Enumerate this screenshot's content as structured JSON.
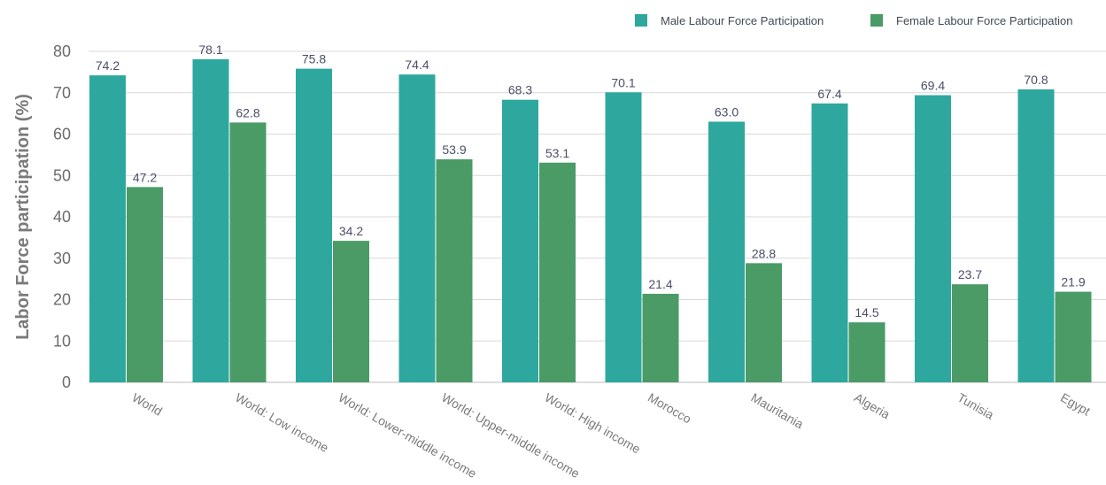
{
  "chart_data": {
    "type": "bar",
    "title": "",
    "xlabel": "",
    "ylabel": "Labor Force participation (%)",
    "ylim": [
      0,
      80
    ],
    "yticks": [
      0,
      10,
      20,
      30,
      40,
      50,
      60,
      70,
      80
    ],
    "grid": true,
    "legend_position": "top-right",
    "categories": [
      "World",
      "World: Low income",
      "World: Lower-middle income",
      "World: Upper-middle income",
      "World: High income",
      "Morocco",
      "Mauritania",
      "Algeria",
      "Tunisia",
      "Egypt"
    ],
    "series": [
      {
        "name": "Male Labour Force Participation",
        "color": "#2ea89e",
        "values": [
          74.2,
          78.1,
          75.8,
          74.4,
          68.3,
          70.1,
          63.0,
          67.4,
          69.4,
          70.8
        ],
        "labels": [
          "74.2",
          "78.1",
          "75.8",
          "74.4",
          "68.3",
          "70.1",
          "63.0",
          "67.4",
          "69.4",
          "70.8"
        ]
      },
      {
        "name": "Female Labour Force Participation",
        "color": "#4a9b66",
        "values": [
          47.2,
          62.8,
          34.2,
          53.9,
          53.1,
          21.4,
          28.8,
          14.5,
          23.7,
          21.9
        ],
        "labels": [
          "47.2",
          "62.8",
          "34.2",
          "53.9",
          "53.1",
          "21.4",
          "28.8",
          "14.5",
          "23.7",
          "21.9"
        ]
      }
    ]
  }
}
